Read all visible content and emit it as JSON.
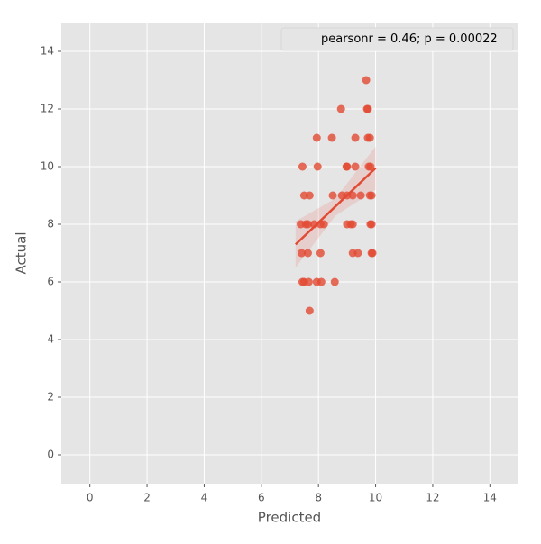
{
  "chart_data": {
    "type": "scatter",
    "x_label": "Predicted",
    "y_label": "Actual",
    "legend_text": "pearsonr = 0.46; p = 0.00022",
    "legend_position": "upper right",
    "color": "#e24a33",
    "x": [
      9.67,
      8.79,
      9.7,
      9.73,
      7.94,
      8.47,
      9.29,
      9.73,
      9.8,
      7.44,
      7.97,
      8.98,
      9.0,
      9.29,
      9.76,
      9.82,
      7.5,
      7.69,
      8.5,
      8.82,
      9.0,
      9.2,
      9.48,
      9.8,
      9.86,
      7.38,
      7.56,
      7.63,
      7.85,
      8.07,
      8.19,
      9.0,
      9.13,
      9.2,
      9.82,
      9.86,
      7.41,
      7.63,
      8.07,
      9.2,
      9.38,
      9.86,
      9.89,
      7.44,
      7.5,
      7.66,
      7.94,
      8.1,
      8.57,
      7.69
    ],
    "values": [
      13,
      12,
      12,
      12,
      11,
      11,
      11,
      11,
      11,
      10,
      10,
      10,
      10,
      10,
      10,
      10,
      9,
      9,
      9,
      9,
      9,
      9,
      9,
      9,
      9,
      8,
      8,
      8,
      8,
      8,
      8,
      8,
      8,
      8,
      8,
      8,
      7,
      7,
      7,
      7,
      7,
      7,
      7,
      6,
      6,
      6,
      6,
      6,
      6,
      5
    ],
    "fit_x": [
      7.2,
      10
    ],
    "fit_y": [
      7.3,
      9.95
    ],
    "ci_x": [
      7.2,
      8.6,
      10
    ],
    "ci_lower": [
      6.5,
      8.3,
      9.2
    ],
    "ci_upper": [
      8.1,
      8.9,
      10.7
    ],
    "xlim": [
      -1,
      15
    ],
    "ylim": [
      -1,
      15
    ],
    "xticks": [
      0,
      2,
      4,
      6,
      8,
      10,
      12,
      14
    ],
    "yticks": [
      0,
      2,
      4,
      6,
      8,
      10,
      12,
      14
    ],
    "grid": true
  }
}
